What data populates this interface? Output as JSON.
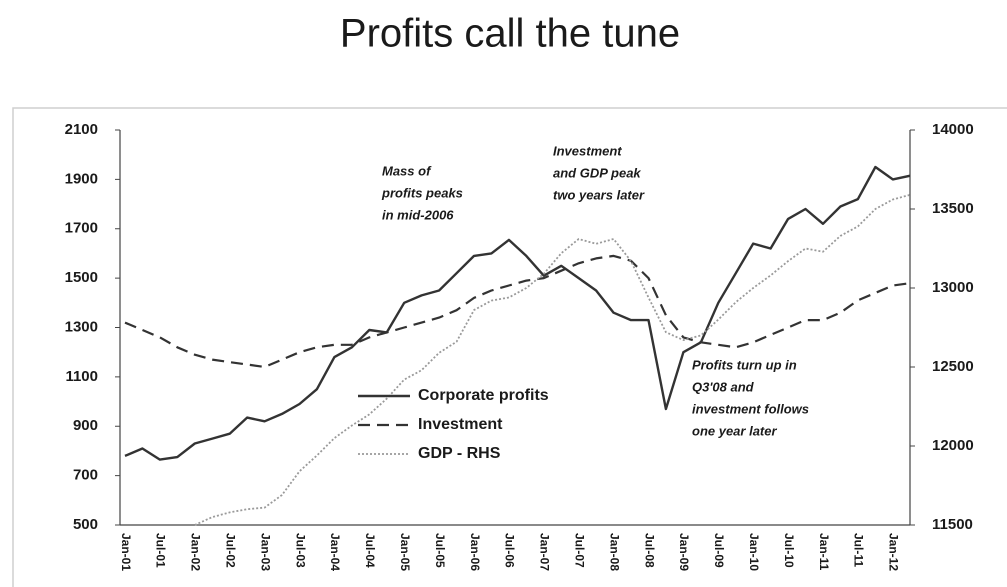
{
  "chart_data": {
    "type": "line",
    "title": "Profits call the tune",
    "categories": [
      "Jan-01",
      null,
      "Jul-01",
      null,
      "Jan-02",
      null,
      "Jul-02",
      null,
      "Jan-03",
      null,
      "Jul-03",
      null,
      "Jan-04",
      null,
      "Jul-04",
      null,
      "Jan-05",
      null,
      "Jul-05",
      null,
      "Jan-06",
      null,
      "Jul-06",
      null,
      "Jan-07",
      null,
      "Jul-07",
      null,
      "Jan-08",
      null,
      "Jul-08",
      null,
      "Jan-09",
      null,
      "Jul-09",
      null,
      "Jan-10",
      null,
      "Jul-10",
      null,
      "Jan-11",
      null,
      "Jul-11",
      null,
      "Jan-12",
      null
    ],
    "series": [
      {
        "name": "Corporate profits",
        "color": "#333333",
        "dash": "solid",
        "axis": "y",
        "values": [
          780,
          810,
          765,
          775,
          830,
          850,
          870,
          935,
          920,
          950,
          990,
          1050,
          1180,
          1220,
          1290,
          1280,
          1400,
          1430,
          1450,
          1520,
          1590,
          1600,
          1655,
          1590,
          1510,
          1550,
          1500,
          1450,
          1360,
          1330,
          1330,
          970,
          1200,
          1240,
          1400,
          1520,
          1640,
          1620,
          1740,
          1780,
          1720,
          1790,
          1820,
          1950,
          1900,
          1915
        ]
      },
      {
        "name": "Investment",
        "color": "#333333",
        "dash": "dashed",
        "axis": "y",
        "values": [
          1320,
          1290,
          1260,
          1220,
          1190,
          1170,
          1160,
          1150,
          1140,
          1170,
          1200,
          1220,
          1230,
          1230,
          1260,
          1280,
          1300,
          1320,
          1340,
          1370,
          1420,
          1450,
          1470,
          1490,
          1500,
          1530,
          1560,
          1580,
          1590,
          1570,
          1500,
          1350,
          1260,
          1240,
          1230,
          1220,
          1240,
          1270,
          1300,
          1330,
          1330,
          1360,
          1410,
          1440,
          1470,
          1480
        ]
      },
      {
        "name": "GDP - RHS",
        "color": "#9a9a9a",
        "dash": "dotted",
        "axis": "y2",
        "values": [
          null,
          null,
          null,
          null,
          11500,
          11550,
          11580,
          11600,
          11610,
          11690,
          11840,
          11940,
          12050,
          12130,
          12200,
          12300,
          12420,
          12480,
          12590,
          12660,
          12860,
          12920,
          12940,
          13000,
          13090,
          13220,
          13310,
          13280,
          13310,
          13170,
          12940,
          12720,
          12670,
          12700,
          12800,
          12910,
          13000,
          13080,
          13170,
          13250,
          13230,
          13330,
          13390,
          13500,
          13560,
          13590
        ]
      }
    ],
    "ylim": [
      500,
      2100
    ],
    "yticks": [
      500,
      700,
      900,
      1100,
      1300,
      1500,
      1700,
      1900,
      2100
    ],
    "y2lim": [
      11500,
      14000
    ],
    "y2ticks": [
      11500,
      12000,
      12500,
      13000,
      13500,
      14000
    ],
    "annotations": [
      [
        "Mass of",
        "profits peaks",
        "in mid-2006"
      ],
      [
        "Investment",
        "and GDP peak",
        "two years later"
      ],
      [
        "Profits turn up in",
        "Q3'08 and",
        "investment follows",
        "one year later"
      ]
    ],
    "grid": false
  }
}
